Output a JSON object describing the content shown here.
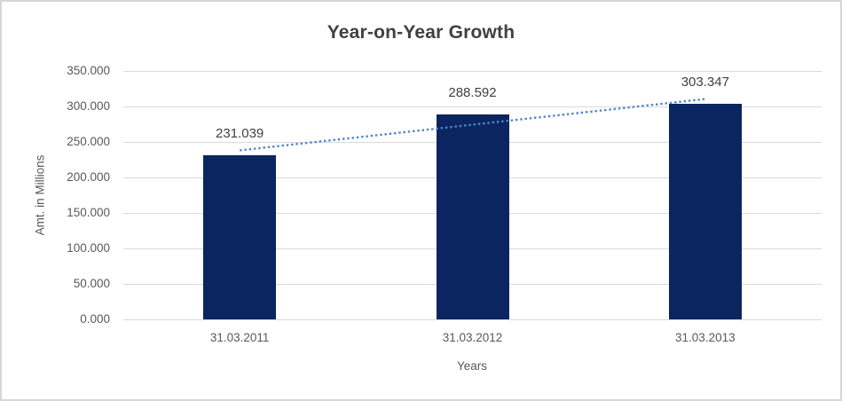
{
  "chart_data": {
    "type": "bar",
    "title": "Year-on-Year Growth",
    "categories": [
      "31.03.2011",
      "31.03.2012",
      "31.03.2013"
    ],
    "values": [
      231039,
      288592,
      303347
    ],
    "value_labels": [
      "231.039",
      "288.592",
      "303.347"
    ],
    "xlabel": "Years",
    "ylabel": "Amt. in Millions",
    "ylim": [
      0,
      350000
    ],
    "yticks": [
      {
        "value": 0,
        "label": "0.000"
      },
      {
        "value": 50000,
        "label": "50.000"
      },
      {
        "value": 100000,
        "label": "100.000"
      },
      {
        "value": 150000,
        "label": "150.000"
      },
      {
        "value": 200000,
        "label": "200.000"
      },
      {
        "value": 250000,
        "label": "250.000"
      },
      {
        "value": 300000,
        "label": "300.000"
      },
      {
        "value": 350000,
        "label": "350.000"
      }
    ],
    "grid": true,
    "legend": "none",
    "trendline": {
      "type": "linear",
      "style": "dotted"
    }
  },
  "colors": {
    "bar": "#0a2560",
    "trendline": "#4e86c8",
    "gridline": "#d9d9d9",
    "tick_text": "#595959",
    "axis_title_text": "#595959",
    "title_text": "#404040",
    "data_label_text": "#404040",
    "frame_border": "#d6d6d6",
    "background": "#ffffff"
  }
}
